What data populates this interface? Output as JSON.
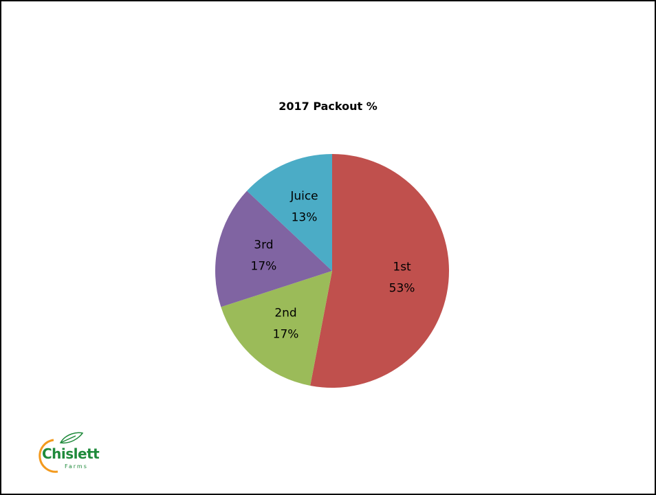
{
  "chart_data": {
    "type": "pie",
    "title": "2017 Packout %",
    "slices": [
      {
        "label": "1st",
        "value": 53,
        "display": "53%",
        "color": "#c0504d"
      },
      {
        "label": "2nd",
        "value": 17,
        "display": "17%",
        "color": "#9bbb59"
      },
      {
        "label": "3rd",
        "value": 17,
        "display": "17%",
        "color": "#8064a2"
      },
      {
        "label": "Juice",
        "value": 13,
        "display": "13%",
        "color": "#4bacc6"
      }
    ],
    "start": "12 o'clock",
    "direction": "clockwise",
    "label_position": "inside",
    "legend": "none"
  },
  "logo": {
    "name": "Chislett",
    "sub": "Farms",
    "color_green": "#1f8a3b",
    "color_orange": "#f39a1e"
  }
}
